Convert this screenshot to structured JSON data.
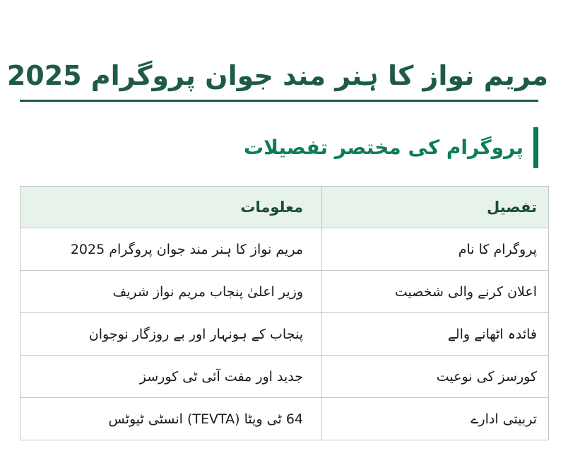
{
  "page": {
    "title": "مریم نواز کا ہنر مند جوان پروگرام 2025",
    "section_heading": "پروگرام کی مختصر تفصیلات"
  },
  "table": {
    "columns": {
      "detail": "تفصیل",
      "info": "معلومات"
    },
    "rows": [
      {
        "label": "پروگرام کا نام",
        "value": "مریم نواز کا ہنر مند جوان پروگرام 2025"
      },
      {
        "label": "اعلان کرنے والی شخصیت",
        "value": "وزیر اعلیٰ پنجاب مریم نواز شریف"
      },
      {
        "label": "فائدہ اٹھانے والے",
        "value": "پنجاب کے ہونہار اور بے روزگار نوجوان"
      },
      {
        "label": "کورسز کی نوعیت",
        "value": "جدید اور مفت آئی ٹی کورسز"
      },
      {
        "label": "تربیتی ادارے",
        "value": "64 ٹی ویٹا (TEVTA) انسٹی ٹیوٹس"
      }
    ]
  },
  "colors": {
    "title_green": "#1d5a4a",
    "accent_green": "#0a7a50",
    "heading_green": "#0e7e52",
    "table_header_bg": "#e7f3e8",
    "table_border": "#c6c6c6",
    "body_text": "#1a1a1a"
  }
}
